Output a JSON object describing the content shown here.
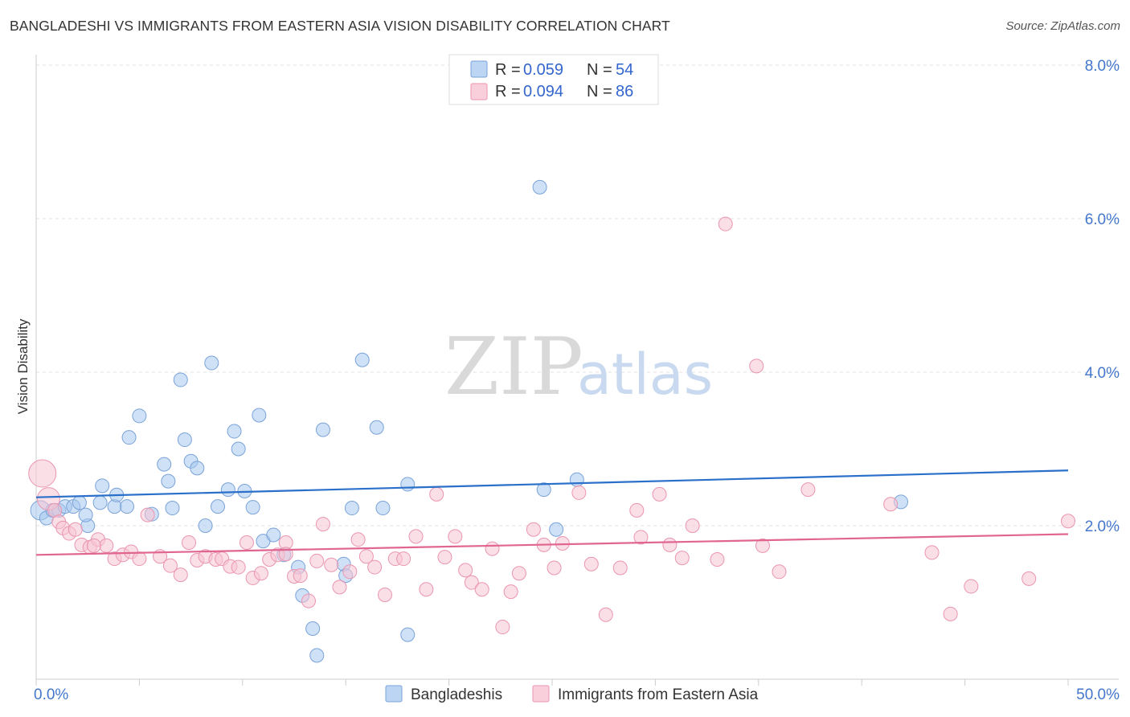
{
  "title": "BANGLADESHI VS IMMIGRANTS FROM EASTERN ASIA VISION DISABILITY CORRELATION CHART",
  "source": "Source: ZipAtlas.com",
  "watermark": {
    "zip": "ZIP",
    "atlas": "atlas"
  },
  "chart_data": {
    "type": "scatter",
    "ylabel": "Vision Disability",
    "xlim": [
      0,
      50
    ],
    "ylim": [
      0,
      8.3
    ],
    "x_ticks": [
      {
        "value": 0,
        "label": "0.0%"
      },
      {
        "value": 50,
        "label": "50.0%"
      }
    ],
    "y_ticks": [
      {
        "value": 2,
        "label": "2.0%"
      },
      {
        "value": 4,
        "label": "4.0%"
      },
      {
        "value": 6,
        "label": "6.0%"
      },
      {
        "value": 8,
        "label": "8.0%"
      }
    ],
    "grid": true,
    "legend_position": "top-center",
    "legend": [
      {
        "r_label": "R = ",
        "r": "0.059",
        "n_label": "N = ",
        "n": "54"
      },
      {
        "r_label": "R = ",
        "r": "0.094",
        "n_label": "N = ",
        "n": "86"
      }
    ],
    "series": [
      {
        "name": "Bangladeshis",
        "color": "#a8c8ee",
        "stroke": "#7aa3d8",
        "line_color": "#2a6fc9",
        "trend": {
          "x": [
            0,
            50
          ],
          "y": [
            2.37,
            2.72
          ]
        },
        "points": [
          [
            0.2,
            2.2
          ],
          [
            0.5,
            2.1
          ],
          [
            0.8,
            2.2
          ],
          [
            1.1,
            2.2
          ],
          [
            1.4,
            2.25
          ],
          [
            1.8,
            2.25
          ],
          [
            2.1,
            2.3
          ],
          [
            2.5,
            2.0
          ],
          [
            3.1,
            2.3
          ],
          [
            3.8,
            2.25
          ],
          [
            4.4,
            2.25
          ],
          [
            2.4,
            2.14
          ],
          [
            3.2,
            2.52
          ],
          [
            3.9,
            2.4
          ],
          [
            4.5,
            3.15
          ],
          [
            5.6,
            2.15
          ],
          [
            6.2,
            2.8
          ],
          [
            6.4,
            2.58
          ],
          [
            6.6,
            2.23
          ],
          [
            7.0,
            3.9
          ],
          [
            7.2,
            3.12
          ],
          [
            7.5,
            2.84
          ],
          [
            7.8,
            2.75
          ],
          [
            8.2,
            2.0
          ],
          [
            8.5,
            4.12
          ],
          [
            8.8,
            2.25
          ],
          [
            9.3,
            2.47
          ],
          [
            9.6,
            3.23
          ],
          [
            9.8,
            3.0
          ],
          [
            10.1,
            2.45
          ],
          [
            10.5,
            2.24
          ],
          [
            10.8,
            3.44
          ],
          [
            11.0,
            1.8
          ],
          [
            11.5,
            1.88
          ],
          [
            12.0,
            1.62
          ],
          [
            12.7,
            1.46
          ],
          [
            12.9,
            1.09
          ],
          [
            13.4,
            0.66
          ],
          [
            13.6,
            0.31
          ],
          [
            13.9,
            3.25
          ],
          [
            14.9,
            1.5
          ],
          [
            15.0,
            1.35
          ],
          [
            15.3,
            2.23
          ],
          [
            15.8,
            4.16
          ],
          [
            16.5,
            3.28
          ],
          [
            16.8,
            2.23
          ],
          [
            18.0,
            2.54
          ],
          [
            18.0,
            0.58
          ],
          [
            24.4,
            6.41
          ],
          [
            24.6,
            2.47
          ],
          [
            25.2,
            1.95
          ],
          [
            26.2,
            2.6
          ],
          [
            41.9,
            2.31
          ],
          [
            5.0,
            3.43
          ]
        ]
      },
      {
        "name": "Immigrants from Eastern Asia",
        "color": "#f8c4d4",
        "stroke": "#ea95b0",
        "line_color": "#e06591",
        "trend": {
          "x": [
            0,
            50
          ],
          "y": [
            1.62,
            1.89
          ]
        },
        "points": [
          [
            0.3,
            2.68
          ],
          [
            0.6,
            2.35
          ],
          [
            0.9,
            2.2
          ],
          [
            1.1,
            2.05
          ],
          [
            1.3,
            1.97
          ],
          [
            1.6,
            1.9
          ],
          [
            1.9,
            1.95
          ],
          [
            2.2,
            1.75
          ],
          [
            2.6,
            1.72
          ],
          [
            3.0,
            1.82
          ],
          [
            3.4,
            1.74
          ],
          [
            3.8,
            1.57
          ],
          [
            4.2,
            1.62
          ],
          [
            4.6,
            1.66
          ],
          [
            5.0,
            1.57
          ],
          [
            5.4,
            2.14
          ],
          [
            6.0,
            1.6
          ],
          [
            6.5,
            1.48
          ],
          [
            7.0,
            1.36
          ],
          [
            7.4,
            1.78
          ],
          [
            7.8,
            1.55
          ],
          [
            8.2,
            1.6
          ],
          [
            8.7,
            1.56
          ],
          [
            9.0,
            1.57
          ],
          [
            9.4,
            1.47
          ],
          [
            9.8,
            1.46
          ],
          [
            10.2,
            1.78
          ],
          [
            10.5,
            1.32
          ],
          [
            10.9,
            1.38
          ],
          [
            11.3,
            1.56
          ],
          [
            11.7,
            1.62
          ],
          [
            12.1,
            1.78
          ],
          [
            12.5,
            1.34
          ],
          [
            12.8,
            1.35
          ],
          [
            13.2,
            1.02
          ],
          [
            13.6,
            1.54
          ],
          [
            13.9,
            2.02
          ],
          [
            14.3,
            1.49
          ],
          [
            14.7,
            1.2
          ],
          [
            15.2,
            1.4
          ],
          [
            15.6,
            1.82
          ],
          [
            16.0,
            1.6
          ],
          [
            16.4,
            1.46
          ],
          [
            16.9,
            1.1
          ],
          [
            17.4,
            1.57
          ],
          [
            17.8,
            1.57
          ],
          [
            18.4,
            1.86
          ],
          [
            18.9,
            1.17
          ],
          [
            19.4,
            2.41
          ],
          [
            19.8,
            1.59
          ],
          [
            20.3,
            1.86
          ],
          [
            20.8,
            1.42
          ],
          [
            21.1,
            1.26
          ],
          [
            21.6,
            1.17
          ],
          [
            22.1,
            1.7
          ],
          [
            22.6,
            0.68
          ],
          [
            23.0,
            1.14
          ],
          [
            23.4,
            1.38
          ],
          [
            24.1,
            1.95
          ],
          [
            24.6,
            1.75
          ],
          [
            25.1,
            1.45
          ],
          [
            25.5,
            1.77
          ],
          [
            26.3,
            2.43
          ],
          [
            26.9,
            1.5
          ],
          [
            27.6,
            0.84
          ],
          [
            28.3,
            1.45
          ],
          [
            29.1,
            2.2
          ],
          [
            29.3,
            1.85
          ],
          [
            30.2,
            2.41
          ],
          [
            30.7,
            1.75
          ],
          [
            31.3,
            1.58
          ],
          [
            31.8,
            2.0
          ],
          [
            33.0,
            1.56
          ],
          [
            33.4,
            5.93
          ],
          [
            34.9,
            4.08
          ],
          [
            35.2,
            1.74
          ],
          [
            36.0,
            1.4
          ],
          [
            37.4,
            2.47
          ],
          [
            41.4,
            2.28
          ],
          [
            43.4,
            1.65
          ],
          [
            44.3,
            0.85
          ],
          [
            45.3,
            1.21
          ],
          [
            48.1,
            1.31
          ],
          [
            50.0,
            2.06
          ],
          [
            2.8,
            1.74
          ],
          [
            12.1,
            1.63
          ]
        ]
      }
    ]
  }
}
